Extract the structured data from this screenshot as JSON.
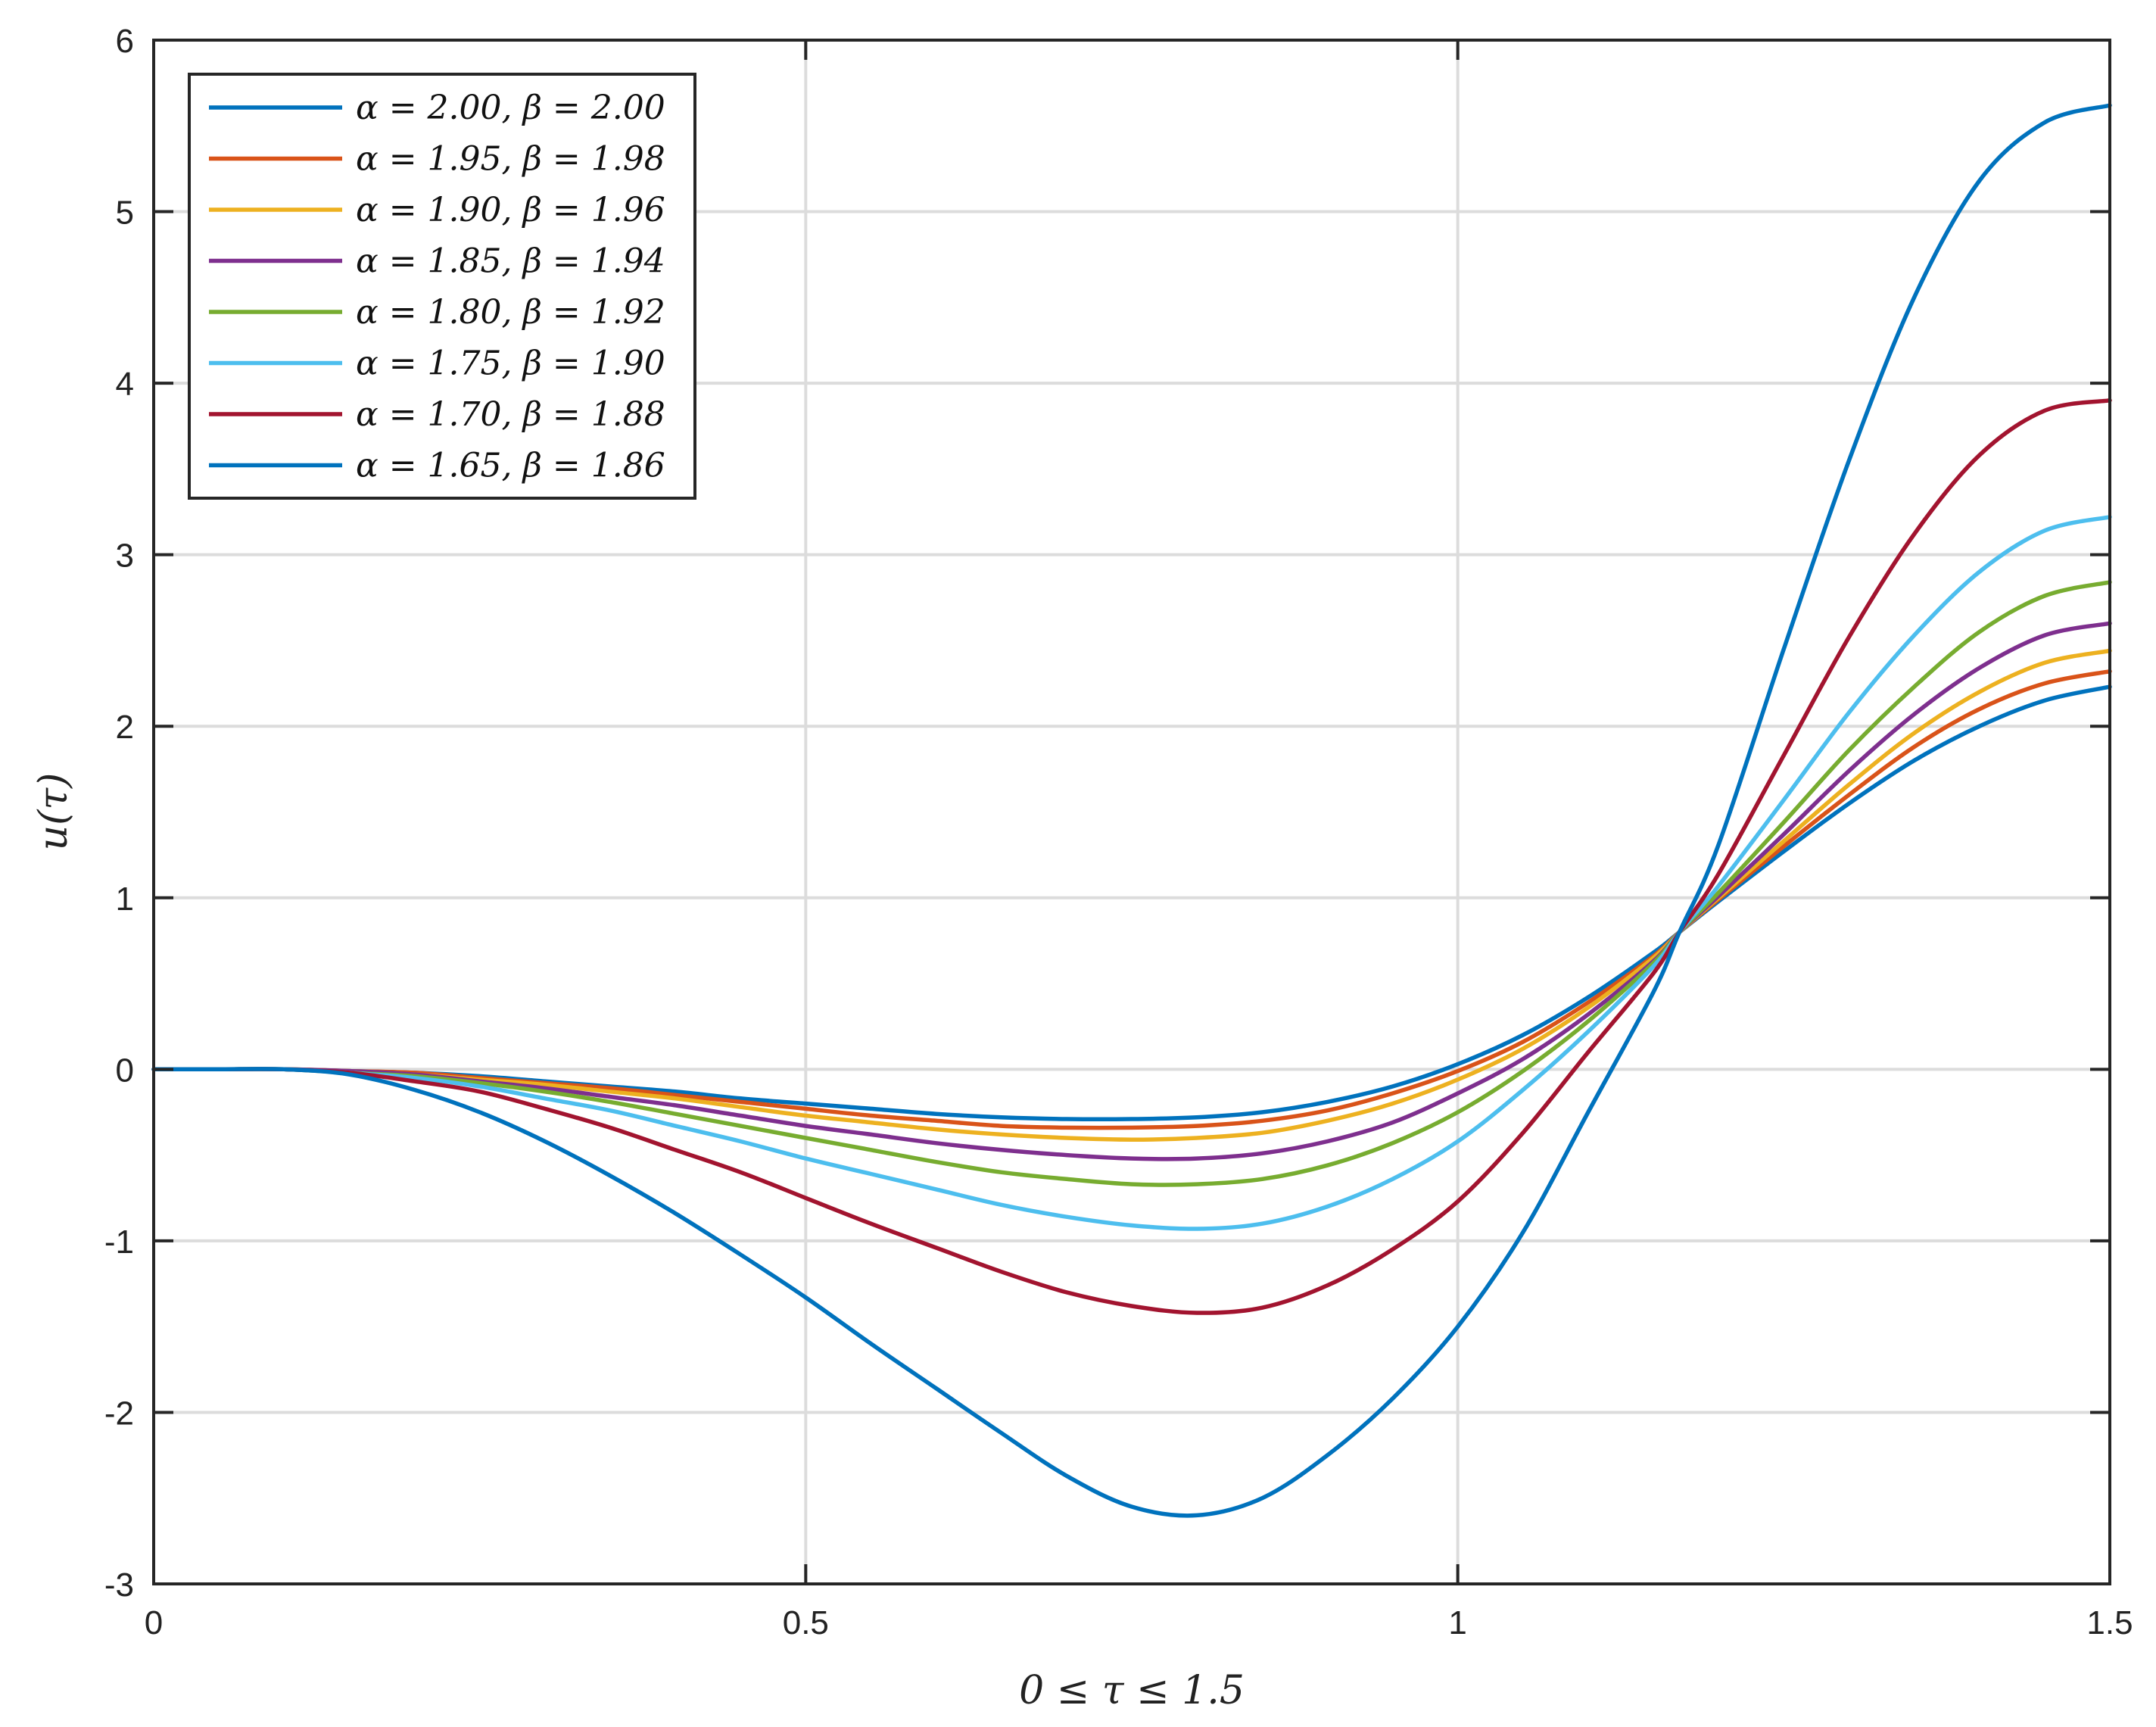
{
  "chart_data": {
    "type": "line",
    "title": "",
    "xlabel": "0 ≤ τ ≤ 1.5",
    "ylabel": "u(τ)",
    "xlim": [
      0,
      1.5
    ],
    "ylim": [
      -3,
      6
    ],
    "xticks": [
      0,
      0.5,
      1,
      1.5
    ],
    "xtick_labels": [
      "0",
      "0.5",
      "1",
      "1.5"
    ],
    "yticks": [
      -3,
      -2,
      -1,
      0,
      1,
      2,
      3,
      4,
      5,
      6
    ],
    "ytick_labels": [
      "-3",
      "-2",
      "-1",
      "0",
      "1",
      "2",
      "3",
      "4",
      "5",
      "6"
    ],
    "grid": true,
    "legend_position": "top-left",
    "x": [
      0,
      0.05,
      0.1,
      0.15,
      0.2,
      0.25,
      0.3,
      0.35,
      0.4,
      0.45,
      0.5,
      0.55,
      0.6,
      0.65,
      0.7,
      0.75,
      0.8,
      0.85,
      0.9,
      0.95,
      1.0,
      1.05,
      1.1,
      1.15,
      1.17,
      1.2,
      1.25,
      1.3,
      1.35,
      1.4,
      1.45,
      1.5
    ],
    "series": [
      {
        "name": "α = 2.00, β = 2.00",
        "color": "#0072BD",
        "values": [
          0,
          0,
          0,
          -0.01,
          -0.02,
          -0.04,
          -0.07,
          -0.1,
          -0.13,
          -0.17,
          -0.2,
          -0.23,
          -0.26,
          -0.28,
          -0.29,
          -0.29,
          -0.28,
          -0.25,
          -0.19,
          -0.1,
          0.03,
          0.2,
          0.42,
          0.68,
          0.8,
          0.98,
          1.27,
          1.55,
          1.8,
          2.0,
          2.15,
          2.23
        ]
      },
      {
        "name": "α = 1.95, β = 1.98",
        "color": "#D95319",
        "values": [
          0,
          0,
          0,
          -0.01,
          -0.02,
          -0.05,
          -0.08,
          -0.11,
          -0.15,
          -0.19,
          -0.23,
          -0.27,
          -0.3,
          -0.33,
          -0.34,
          -0.34,
          -0.33,
          -0.3,
          -0.24,
          -0.14,
          -0.01,
          0.16,
          0.39,
          0.66,
          0.8,
          0.99,
          1.3,
          1.6,
          1.88,
          2.1,
          2.25,
          2.32
        ]
      },
      {
        "name": "α = 1.90, β = 1.96",
        "color": "#EDB120",
        "values": [
          0,
          0,
          0,
          -0.01,
          -0.03,
          -0.06,
          -0.09,
          -0.13,
          -0.17,
          -0.22,
          -0.27,
          -0.31,
          -0.35,
          -0.38,
          -0.4,
          -0.41,
          -0.4,
          -0.37,
          -0.3,
          -0.2,
          -0.06,
          0.12,
          0.36,
          0.65,
          0.8,
          1.0,
          1.33,
          1.66,
          1.96,
          2.2,
          2.37,
          2.44
        ]
      },
      {
        "name": "α = 1.85, β = 1.94",
        "color": "#7E2F8E",
        "values": [
          0,
          0,
          0,
          -0.01,
          -0.03,
          -0.07,
          -0.11,
          -0.16,
          -0.21,
          -0.27,
          -0.33,
          -0.38,
          -0.43,
          -0.47,
          -0.5,
          -0.52,
          -0.52,
          -0.49,
          -0.42,
          -0.31,
          -0.14,
          0.06,
          0.32,
          0.63,
          0.8,
          1.01,
          1.37,
          1.74,
          2.07,
          2.34,
          2.53,
          2.6
        ]
      },
      {
        "name": "α = 1.80, β = 1.92",
        "color": "#77AC30",
        "values": [
          0,
          0,
          0,
          -0.02,
          -0.04,
          -0.08,
          -0.13,
          -0.19,
          -0.26,
          -0.33,
          -0.4,
          -0.47,
          -0.54,
          -0.6,
          -0.64,
          -0.67,
          -0.67,
          -0.64,
          -0.56,
          -0.43,
          -0.25,
          -0.01,
          0.28,
          0.62,
          0.8,
          1.03,
          1.44,
          1.86,
          2.23,
          2.55,
          2.76,
          2.84
        ]
      },
      {
        "name": "α = 1.75, β = 1.90",
        "color": "#4DBEEE",
        "values": [
          0,
          0,
          0,
          -0.02,
          -0.05,
          -0.1,
          -0.17,
          -0.24,
          -0.33,
          -0.42,
          -0.52,
          -0.61,
          -0.7,
          -0.79,
          -0.86,
          -0.91,
          -0.93,
          -0.9,
          -0.8,
          -0.64,
          -0.42,
          -0.12,
          0.22,
          0.6,
          0.8,
          1.07,
          1.57,
          2.08,
          2.53,
          2.9,
          3.14,
          3.22
        ]
      },
      {
        "name": "α = 1.70, β = 1.88",
        "color": "#A2142F",
        "values": [
          0,
          0,
          0,
          -0.02,
          -0.07,
          -0.13,
          -0.23,
          -0.34,
          -0.47,
          -0.6,
          -0.75,
          -0.9,
          -1.04,
          -1.18,
          -1.3,
          -1.38,
          -1.42,
          -1.39,
          -1.26,
          -1.05,
          -0.77,
          -0.37,
          0.1,
          0.56,
          0.8,
          1.14,
          1.83,
          2.52,
          3.12,
          3.58,
          3.84,
          3.9
        ]
      },
      {
        "name": "α = 1.65, β = 1.86",
        "color": "#0072BD",
        "values": [
          0,
          0,
          0,
          -0.03,
          -0.12,
          -0.25,
          -0.42,
          -0.62,
          -0.84,
          -1.08,
          -1.33,
          -1.6,
          -1.86,
          -2.12,
          -2.37,
          -2.55,
          -2.6,
          -2.5,
          -2.25,
          -1.92,
          -1.5,
          -0.95,
          -0.25,
          0.45,
          0.8,
          1.31,
          2.45,
          3.55,
          4.5,
          5.18,
          5.52,
          5.62
        ]
      }
    ]
  }
}
